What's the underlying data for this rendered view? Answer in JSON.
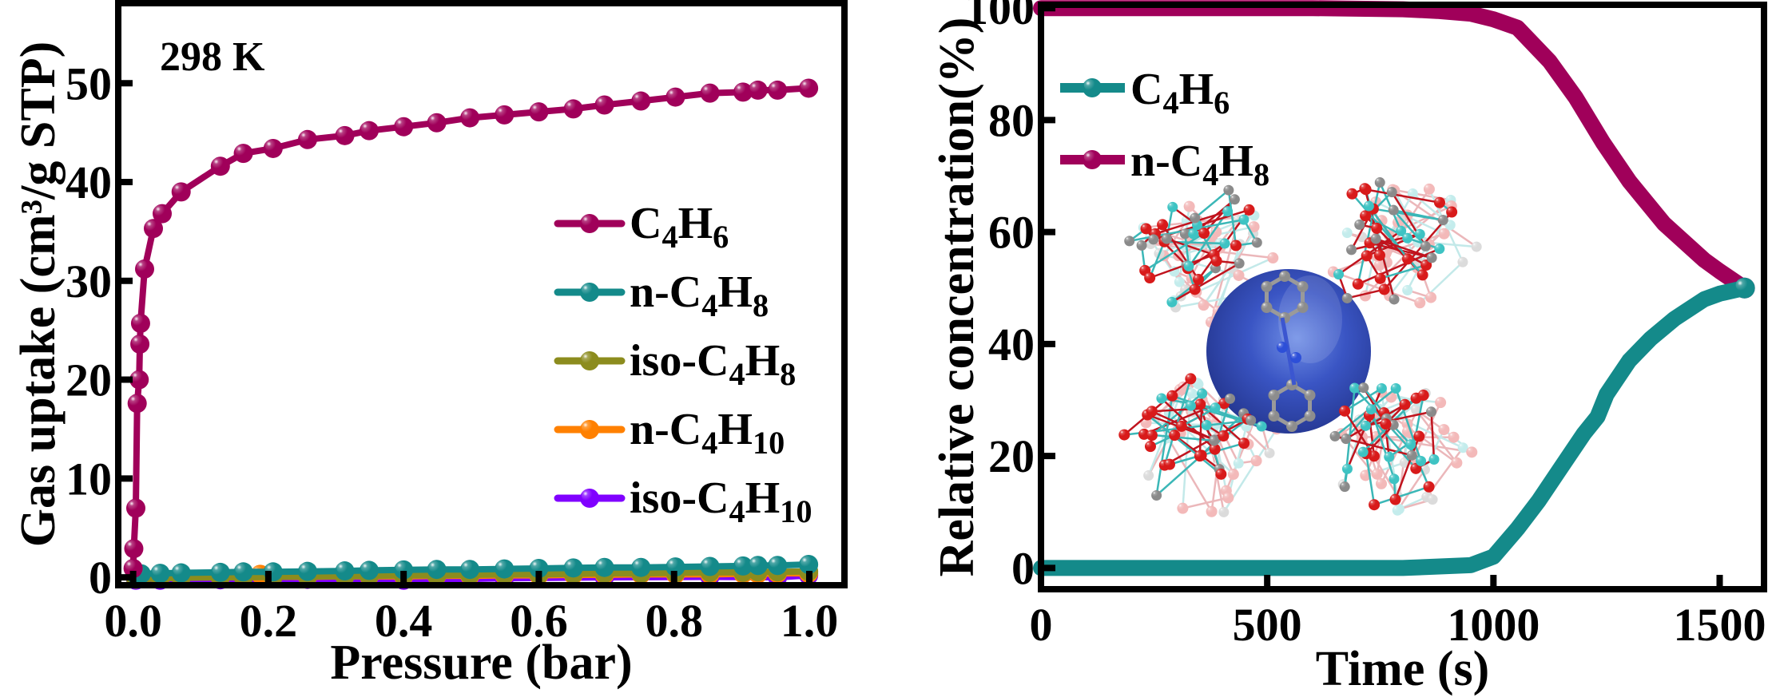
{
  "chart_data": [
    {
      "type": "line",
      "annotation": "298 K",
      "xlabel": "Pressure (bar)",
      "ylabel": "Gas uptake (cm³/g STP)",
      "xlim": [
        -0.022,
        1.052
      ],
      "ylim": [
        -0.8,
        58.1
      ],
      "xticks": [
        0.0,
        0.2,
        0.4,
        0.6,
        0.8,
        1.0
      ],
      "xtick_labels": [
        "0.0",
        "0.2",
        "0.4",
        "0.6",
        "0.8",
        "1.0"
      ],
      "yticks": [
        0,
        10,
        20,
        30,
        40,
        50
      ],
      "ytick_labels": [
        "0",
        "10",
        "20",
        "30",
        "40",
        "50"
      ],
      "grid": false,
      "legend_placement": "center-right",
      "series": [
        {
          "name": "C4H6",
          "color": "#a0005a",
          "x": [
            0.0,
            0.001,
            0.004,
            0.006,
            0.009,
            0.01,
            0.011,
            0.017,
            0.03,
            0.043,
            0.071,
            0.129,
            0.163,
            0.207,
            0.258,
            0.313,
            0.349,
            0.4,
            0.449,
            0.498,
            0.549,
            0.6,
            0.651,
            0.697,
            0.751,
            0.802,
            0.853,
            0.902,
            0.924,
            0.953,
            0.999
          ],
          "y": [
            0.9,
            2.9,
            7.0,
            17.6,
            20.0,
            23.6,
            25.7,
            31.2,
            35.3,
            36.8,
            39.0,
            41.6,
            42.9,
            43.4,
            44.3,
            44.7,
            45.2,
            45.6,
            46.0,
            46.5,
            46.8,
            47.1,
            47.4,
            47.8,
            48.2,
            48.6,
            49.0,
            49.1,
            49.3,
            49.3,
            49.5
          ]
        },
        {
          "name": "n-C4H8",
          "color": "#148a8a",
          "x": [
            0.004,
            0.012,
            0.04,
            0.071,
            0.129,
            0.163,
            0.207,
            0.258,
            0.313,
            0.349,
            0.4,
            0.449,
            0.498,
            0.549,
            0.6,
            0.651,
            0.697,
            0.751,
            0.802,
            0.853,
            0.902,
            0.924,
            0.953,
            0.999
          ],
          "y": [
            0.3,
            0.35,
            0.4,
            0.45,
            0.5,
            0.55,
            0.55,
            0.6,
            0.65,
            0.7,
            0.75,
            0.8,
            0.8,
            0.85,
            0.9,
            0.95,
            1.0,
            1.0,
            1.05,
            1.1,
            1.15,
            1.2,
            1.2,
            1.3
          ]
        },
        {
          "name": "iso-C4H8",
          "color": "#8c8c1e",
          "x": [
            0.004,
            0.012,
            0.04,
            0.071,
            0.129,
            0.163,
            0.207,
            0.258,
            0.313,
            0.349,
            0.4,
            0.449,
            0.498,
            0.549,
            0.6,
            0.651,
            0.697,
            0.751,
            0.802,
            0.853,
            0.902,
            0.924,
            0.953,
            0.999
          ],
          "y": [
            -0.2,
            -0.15,
            -0.1,
            -0.05,
            0.0,
            0.0,
            0.05,
            0.1,
            0.1,
            0.15,
            0.2,
            0.2,
            0.25,
            0.3,
            0.3,
            0.35,
            0.4,
            0.4,
            0.45,
            0.5,
            0.5,
            0.55,
            0.55,
            0.6
          ]
        },
        {
          "name": "n-C4H10",
          "color": "#ff8000",
          "x": [
            0.004,
            0.012,
            0.04,
            0.071,
            0.129,
            0.188,
            0.207,
            0.258,
            0.313,
            0.349,
            0.4,
            0.449,
            0.498,
            0.549,
            0.6,
            0.651,
            0.697,
            0.751,
            0.802,
            0.853,
            0.902,
            0.924,
            0.953,
            0.999
          ],
          "y": [
            -0.1,
            -0.1,
            -0.05,
            0.0,
            0.0,
            0.3,
            0.05,
            0.05,
            0.1,
            0.1,
            0.1,
            0.15,
            0.15,
            0.2,
            0.2,
            0.25,
            0.25,
            0.3,
            0.3,
            0.3,
            0.35,
            0.35,
            0.4,
            0.4
          ]
        },
        {
          "name": "iso-C4H10",
          "color": "#8000ff",
          "x": [
            0.004,
            0.04,
            0.129,
            0.258,
            0.4,
            0.549,
            0.697,
            0.853,
            0.953,
            0.999
          ],
          "y": [
            -0.3,
            -0.3,
            -0.25,
            -0.2,
            -0.3,
            -0.1,
            0.0,
            0.05,
            0.0,
            0.2
          ]
        }
      ]
    },
    {
      "type": "line",
      "xlabel": "Time (s)",
      "ylabel": "Relative concentration(%)",
      "xlim": [
        0,
        1598
      ],
      "ylim": [
        -3.8,
        100.6
      ],
      "xticks": [
        0,
        500,
        1000,
        1500
      ],
      "xtick_labels": [
        "0",
        "500",
        "1000",
        "1500"
      ],
      "yticks": [
        0,
        20,
        40,
        60,
        80,
        100
      ],
      "ytick_labels": [
        "0",
        "20",
        "40",
        "60",
        "80",
        "100"
      ],
      "grid": false,
      "legend_placement": "top-left",
      "inset_image": "MOF cage structure with blue pore sphere",
      "series": [
        {
          "name": "C4H6",
          "color": "#148a8a",
          "x": [
            0,
            200,
            400,
            600,
            800,
            950,
            1000,
            1053,
            1100,
            1150,
            1200,
            1230,
            1250,
            1300,
            1348,
            1400,
            1466,
            1500,
            1555
          ],
          "y": [
            0,
            0,
            0,
            0,
            0,
            0.5,
            2,
            7,
            12,
            18,
            24,
            27,
            31,
            37,
            41,
            44.5,
            48,
            49,
            50
          ]
        },
        {
          "name": "n-C4H8",
          "color": "#a0005a",
          "x": [
            0,
            200,
            400,
            600,
            800,
            876,
            950,
            1000,
            1053,
            1124,
            1182,
            1242,
            1301,
            1377,
            1466,
            1500,
            1555
          ],
          "y": [
            100,
            100,
            100,
            100,
            99.8,
            99.5,
            99,
            98,
            96.5,
            90.5,
            84,
            76,
            69,
            61.5,
            55,
            53,
            50
          ]
        }
      ]
    }
  ]
}
